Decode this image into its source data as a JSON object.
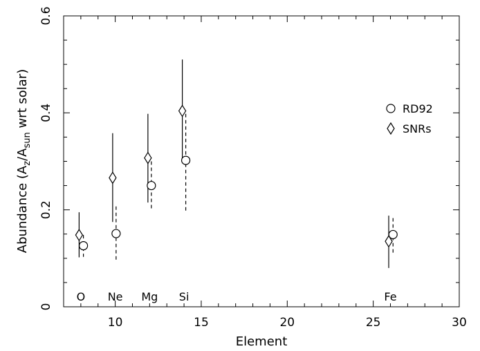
{
  "chart_data": {
    "type": "scatter",
    "xlabel": "Element",
    "ylabel": {
      "prefix": "Abundance (A",
      "sub1": "z",
      "mid": "/A",
      "sub2": "sun",
      "suffix": " wrt solar)"
    },
    "xlim": [
      7,
      30
    ],
    "ylim": [
      0,
      0.6
    ],
    "xticks": [
      10,
      15,
      20,
      25,
      30
    ],
    "yticks": [
      0,
      0.2,
      0.4,
      0.6
    ],
    "xtick_labels": [
      "10",
      "15",
      "20",
      "25",
      "30"
    ],
    "ytick_labels": [
      "0",
      "0.2",
      "0.4",
      "0.6"
    ],
    "grid": false,
    "legend_position": "right",
    "element_labels": [
      {
        "text": "O",
        "x": 8
      },
      {
        "text": "Ne",
        "x": 10
      },
      {
        "text": "Mg",
        "x": 12
      },
      {
        "text": "Si",
        "x": 14
      },
      {
        "text": "Fe",
        "x": 26
      }
    ],
    "series": [
      {
        "name": "RD92",
        "marker": "circle",
        "errorbar_style": "dashed",
        "points": [
          {
            "x": 8.15,
            "y": 0.126,
            "ylo": 0.103,
            "yhi": 0.148
          },
          {
            "x": 10.05,
            "y": 0.151,
            "ylo": 0.095,
            "yhi": 0.207
          },
          {
            "x": 12.1,
            "y": 0.25,
            "ylo": 0.198,
            "yhi": 0.3
          },
          {
            "x": 14.1,
            "y": 0.302,
            "ylo": 0.198,
            "yhi": 0.398
          },
          {
            "x": 26.15,
            "y": 0.149,
            "ylo": 0.108,
            "yhi": 0.183
          }
        ]
      },
      {
        "name": "SNRs",
        "marker": "diamond",
        "errorbar_style": "solid",
        "points": [
          {
            "x": 7.9,
            "y": 0.148,
            "ylo": 0.102,
            "yhi": 0.195
          },
          {
            "x": 9.85,
            "y": 0.266,
            "ylo": 0.175,
            "yhi": 0.358
          },
          {
            "x": 11.9,
            "y": 0.307,
            "ylo": 0.215,
            "yhi": 0.398
          },
          {
            "x": 13.9,
            "y": 0.404,
            "ylo": 0.302,
            "yhi": 0.51
          },
          {
            "x": 25.9,
            "y": 0.135,
            "ylo": 0.08,
            "yhi": 0.188
          }
        ]
      }
    ]
  }
}
